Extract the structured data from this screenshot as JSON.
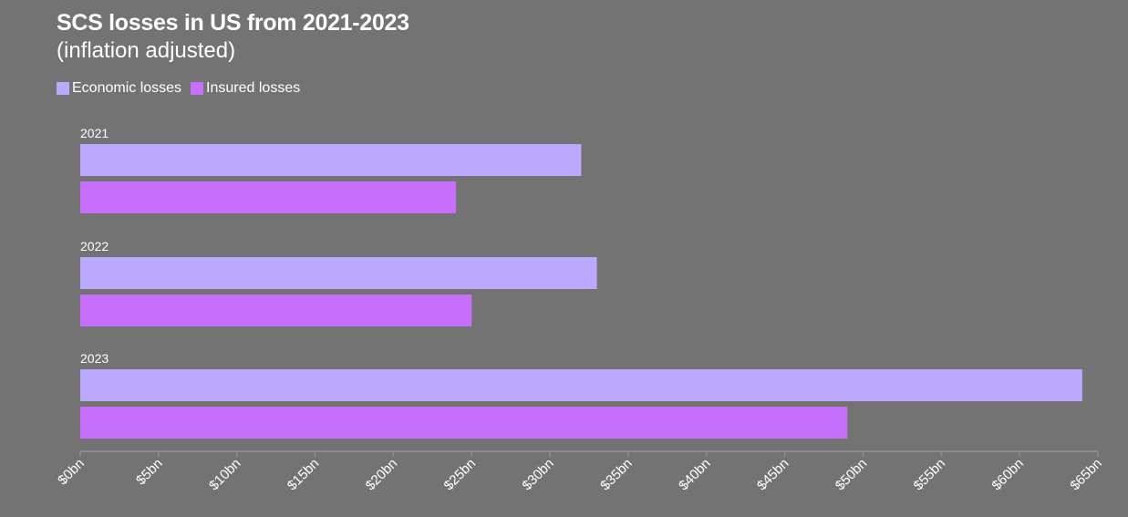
{
  "chart_data": {
    "type": "bar",
    "orientation": "horizontal",
    "title": "SCS losses in US from 2021-2023",
    "subtitle": "(inflation adjusted)",
    "categories": [
      "2021",
      "2022",
      "2023"
    ],
    "series": [
      {
        "name": "Economic losses",
        "color": "#bba8ff",
        "values": [
          32,
          33,
          64
        ]
      },
      {
        "name": "Insured losses",
        "color": "#c56ffc",
        "values": [
          24,
          25,
          49
        ]
      }
    ],
    "xlim": [
      0,
      65
    ],
    "xticks": [
      0,
      5,
      10,
      15,
      20,
      25,
      30,
      35,
      40,
      45,
      50,
      55,
      60,
      65
    ],
    "xtick_labels": [
      "$0bn",
      "$5bn",
      "$10bn",
      "$15bn",
      "$20bn",
      "$25bn",
      "$30bn",
      "$35bn",
      "$40bn",
      "$45bn",
      "$50bn",
      "$55bn",
      "$60bn",
      "$65bn"
    ],
    "legend_position": "top-left",
    "grid": false
  }
}
